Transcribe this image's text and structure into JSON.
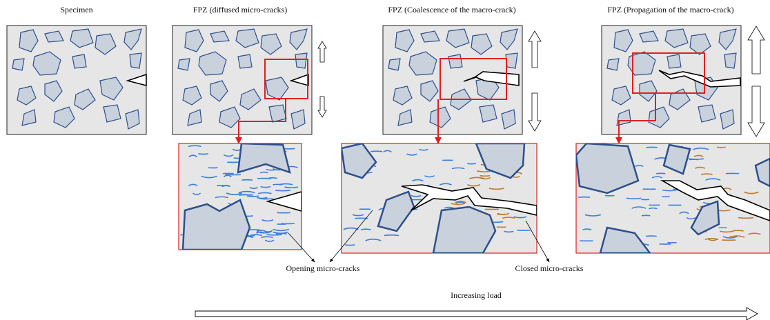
{
  "labels": {
    "specimen": "Specimen",
    "stage1": "FPZ (diffused micro-cracks)",
    "stage2": "FPZ (Coalescence of the macro-crack)",
    "stage3": "FPZ (Propagation of the macro-crack)",
    "opening": "Opening micro-cracks",
    "closed": "Closed micro-cracks",
    "load": "Increasing load"
  }
}
